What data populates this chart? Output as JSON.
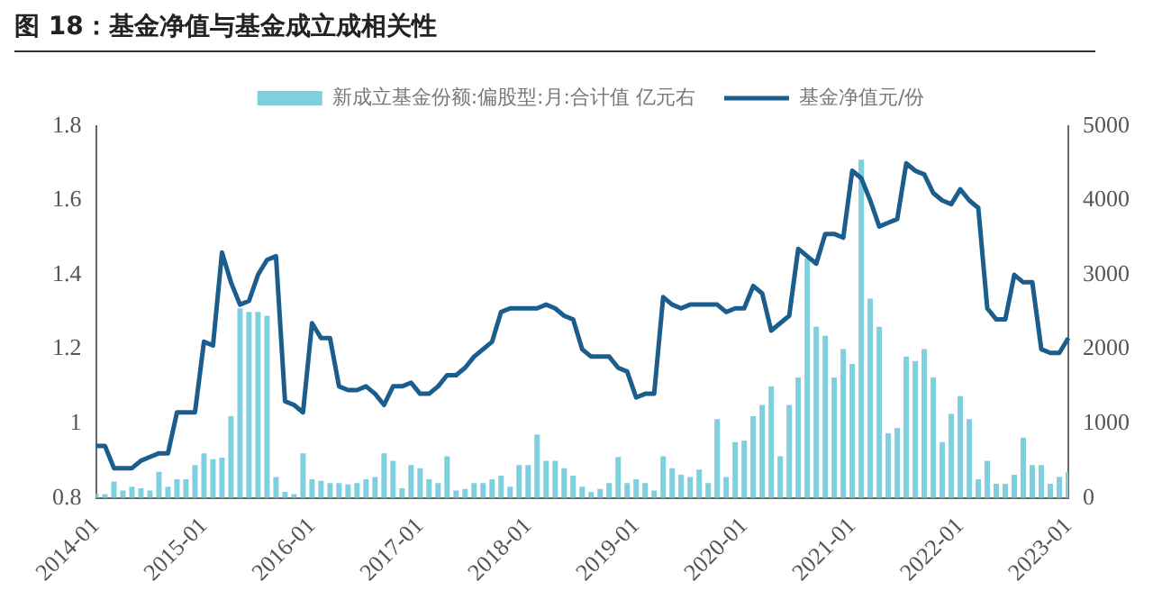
{
  "chart_data": {
    "type": "bar",
    "title": "图 18：基金净值与基金成立成相关性",
    "categories": [
      "2014-01",
      null,
      null,
      null,
      null,
      null,
      null,
      null,
      null,
      null,
      null,
      null,
      "2015-01",
      null,
      null,
      null,
      null,
      null,
      null,
      null,
      null,
      null,
      null,
      null,
      "2016-01",
      null,
      null,
      null,
      null,
      null,
      null,
      null,
      null,
      null,
      null,
      null,
      "2017-01",
      null,
      null,
      null,
      null,
      null,
      null,
      null,
      null,
      null,
      null,
      null,
      "2018-01",
      null,
      null,
      null,
      null,
      null,
      null,
      null,
      null,
      null,
      null,
      null,
      "2019-01",
      null,
      null,
      null,
      null,
      null,
      null,
      null,
      null,
      null,
      null,
      null,
      "2020-01",
      null,
      null,
      null,
      null,
      null,
      null,
      null,
      null,
      null,
      null,
      null,
      "2021-01",
      null,
      null,
      null,
      null,
      null,
      null,
      null,
      null,
      null,
      null,
      null,
      "2022-01",
      null,
      null,
      null,
      null,
      null,
      null,
      null,
      null,
      null,
      null,
      null,
      "2023-01"
    ],
    "series": [
      {
        "name": "新成立基金份额:偏股型:月:合计值 亿元右",
        "axis": "y2",
        "color": "#7fcfdf",
        "values": [
          60,
          50,
          220,
          100,
          150,
          130,
          100,
          350,
          150,
          250,
          250,
          440,
          600,
          520,
          540,
          1100,
          2550,
          2500,
          2500,
          2450,
          280,
          80,
          50,
          600,
          250,
          230,
          200,
          200,
          180,
          200,
          250,
          280,
          600,
          500,
          130,
          440,
          400,
          250,
          200,
          560,
          100,
          120,
          200,
          200,
          250,
          300,
          150,
          440,
          440,
          850,
          500,
          500,
          400,
          300,
          150,
          80,
          120,
          200,
          550,
          200,
          250,
          200,
          100,
          560,
          400,
          310,
          280,
          380,
          200,
          1060,
          280,
          750,
          770,
          1100,
          1250,
          1500,
          560,
          1250,
          1620,
          3220,
          2300,
          2180,
          1620,
          2000,
          1800,
          4550,
          2680,
          2300,
          870,
          940,
          1900,
          1840,
          2000,
          1620,
          750,
          1130,
          1370,
          1060,
          250,
          500,
          190,
          190,
          310,
          810,
          440,
          440,
          190,
          280,
          350
        ]
      },
      {
        "name": "基金净值元/份",
        "type": "line",
        "axis": "y",
        "color": "#1b5e8e",
        "values": [
          0.94,
          0.94,
          0.88,
          0.88,
          0.88,
          0.9,
          0.91,
          0.92,
          0.92,
          1.03,
          1.03,
          1.03,
          1.22,
          1.21,
          1.46,
          1.38,
          1.32,
          1.33,
          1.4,
          1.44,
          1.45,
          1.06,
          1.05,
          1.03,
          1.27,
          1.23,
          1.23,
          1.1,
          1.09,
          1.09,
          1.1,
          1.08,
          1.05,
          1.1,
          1.1,
          1.11,
          1.08,
          1.08,
          1.1,
          1.13,
          1.13,
          1.15,
          1.18,
          1.2,
          1.22,
          1.3,
          1.31,
          1.31,
          1.31,
          1.31,
          1.32,
          1.31,
          1.29,
          1.28,
          1.2,
          1.18,
          1.18,
          1.18,
          1.15,
          1.14,
          1.07,
          1.08,
          1.08,
          1.34,
          1.32,
          1.31,
          1.32,
          1.32,
          1.32,
          1.32,
          1.3,
          1.31,
          1.31,
          1.37,
          1.35,
          1.25,
          1.27,
          1.29,
          1.47,
          1.45,
          1.43,
          1.51,
          1.51,
          1.5,
          1.68,
          1.66,
          1.6,
          1.53,
          1.54,
          1.55,
          1.7,
          1.68,
          1.67,
          1.62,
          1.6,
          1.59,
          1.63,
          1.6,
          1.58,
          1.31,
          1.28,
          1.28,
          1.4,
          1.38,
          1.38,
          1.2,
          1.19,
          1.19,
          1.23
        ]
      }
    ],
    "ylim": [
      0.8,
      1.8
    ],
    "yticks": [
      0.8,
      1,
      1.2,
      1.4,
      1.6,
      1.8
    ],
    "y2lim": [
      0,
      5000
    ],
    "y2ticks": [
      0,
      1000,
      2000,
      3000,
      4000,
      5000
    ],
    "grid": false,
    "legend": "top",
    "marker": "none",
    "line_style": "solid"
  }
}
